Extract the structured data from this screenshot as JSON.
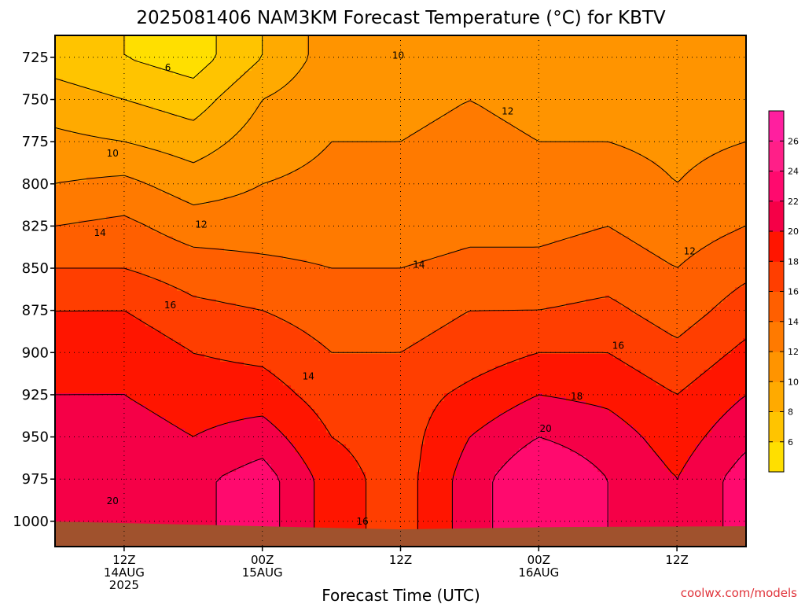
{
  "chart_data": {
    "type": "heatmap",
    "title": "2025081406 NAM3KM Forecast Temperature (°C) for KBTV",
    "xlabel": "Forecast Time (UTC)",
    "ylabel": "",
    "credit": "coolwx.com/models",
    "y_axis": {
      "unit": "hPa",
      "range": [
        1015,
        712
      ],
      "ticks": [
        725,
        750,
        775,
        800,
        825,
        850,
        875,
        900,
        925,
        950,
        975,
        1000
      ],
      "tick_labels": [
        "725",
        "750",
        "775",
        "800",
        "825",
        "850",
        "875",
        "900",
        "925",
        "950",
        "975",
        "1000"
      ]
    },
    "x_axis": {
      "unit": "hours since 2025-08-14 06Z",
      "range": [
        0,
        60
      ],
      "ticks": [
        {
          "hour": 6,
          "lines": [
            "12Z",
            "14AUG",
            "2025"
          ]
        },
        {
          "hour": 18,
          "lines": [
            "00Z",
            "15AUG"
          ]
        },
        {
          "hour": 30,
          "lines": [
            "12Z"
          ]
        },
        {
          "hour": 42,
          "lines": [
            "00Z",
            "16AUG"
          ]
        },
        {
          "hour": 54,
          "lines": [
            "12Z"
          ]
        }
      ]
    },
    "grid": true,
    "colorbar": {
      "labels": [
        "6",
        "8",
        "10",
        "12",
        "14",
        "16",
        "18",
        "20",
        "22",
        "24",
        "26"
      ],
      "bins": [
        {
          "min": 4,
          "max": 6,
          "color": "#ffdf00"
        },
        {
          "min": 6,
          "max": 8,
          "color": "#ffc400"
        },
        {
          "min": 8,
          "max": 10,
          "color": "#ffaa00"
        },
        {
          "min": 10,
          "max": 12,
          "color": "#ff9400"
        },
        {
          "min": 12,
          "max": 14,
          "color": "#ff7a00"
        },
        {
          "min": 14,
          "max": 16,
          "color": "#ff5f00"
        },
        {
          "min": 16,
          "max": 18,
          "color": "#ff3e00"
        },
        {
          "min": 18,
          "max": 20,
          "color": "#ff1500"
        },
        {
          "min": 20,
          "max": 22,
          "color": "#f50047"
        },
        {
          "min": 22,
          "max": 24,
          "color": "#ff0a6e"
        },
        {
          "min": 24,
          "max": 26,
          "color": "#ff1f88"
        },
        {
          "min": 26,
          "max": 28,
          "color": "#ff1f9f"
        }
      ]
    },
    "series": [
      {
        "x": [
          0,
          6,
          12,
          18,
          24,
          30,
          36,
          42,
          48,
          54,
          60
        ],
        "profiles": [
          {
            "hour": 0,
            "values": [
              7,
              9,
              10.5,
              12,
              14,
              16,
              18,
              19,
              20,
              21,
              22
            ]
          },
          {
            "hour": 6,
            "values": [
              6,
              8,
              10,
              12.5,
              14.5,
              16,
              18,
              19.5,
              20,
              21,
              21
            ]
          },
          {
            "hour": 12,
            "values": [
              5,
              7,
              9,
              11,
              13,
              15,
              16.5,
              18,
              19,
              20,
              21.5
            ]
          },
          {
            "hour": 18,
            "values": [
              8,
              10,
              11,
              12,
              13,
              14.5,
              16,
              17.5,
              19,
              21,
              23
            ]
          },
          {
            "hour": 24,
            "values": [
              11,
              11.5,
              12,
              12.5,
              13,
              14,
              15,
              16,
              17,
              18,
              19
            ]
          },
          {
            "hour": 30,
            "values": [
              11,
              11.5,
              12,
              12.5,
              13,
              14,
              15,
              16,
              17,
              17,
              17
            ]
          },
          {
            "hour": 36,
            "values": [
              11,
              12,
              12.5,
              13,
              13.5,
              14.5,
              16,
              17,
              18.5,
              20,
              21
            ]
          },
          {
            "hour": 42,
            "values": [
              10.5,
              11.5,
              12,
              12.5,
              13.5,
              14.5,
              16,
              18,
              20,
              22,
              24
            ]
          },
          {
            "hour": 48,
            "values": [
              10,
              11,
              12,
              13,
              14,
              15,
              16.5,
              18,
              19.5,
              21,
              22
            ]
          },
          {
            "hour": 54,
            "values": [
              11,
              11,
              11.5,
              12,
              13,
              14,
              15,
              16.5,
              18,
              19,
              20
            ]
          },
          {
            "hour": 60,
            "values": [
              10.5,
              11,
              12,
              13,
              14,
              15.5,
              17,
              18.5,
              20,
              21.5,
              23
            ]
          }
        ],
        "pressure_levels": [
          725,
          750,
          775,
          800,
          825,
          850,
          875,
          900,
          925,
          950,
          975
        ]
      }
    ],
    "contour_labels": [
      {
        "text": "6",
        "hour": 9.8,
        "hPa": 731
      },
      {
        "text": "10",
        "hour": 29.8,
        "hPa": 724
      },
      {
        "text": "12",
        "hour": 39.3,
        "hPa": 757
      },
      {
        "text": "10",
        "hour": 5.0,
        "hPa": 782
      },
      {
        "text": "12",
        "hour": 12.7,
        "hPa": 824
      },
      {
        "text": "14",
        "hour": 3.9,
        "hPa": 829
      },
      {
        "text": "14",
        "hour": 31.6,
        "hPa": 848
      },
      {
        "text": "12",
        "hour": 55.1,
        "hPa": 840
      },
      {
        "text": "16",
        "hour": 10.0,
        "hPa": 872
      },
      {
        "text": "16",
        "hour": 48.9,
        "hPa": 896
      },
      {
        "text": "14",
        "hour": 22.0,
        "hPa": 914
      },
      {
        "text": "18",
        "hour": 45.3,
        "hPa": 926
      },
      {
        "text": "20",
        "hour": 42.6,
        "hPa": 945
      },
      {
        "text": "20",
        "hour": 5.0,
        "hPa": 988
      },
      {
        "text": "16",
        "hour": 26.7,
        "hPa": 1000
      }
    ]
  }
}
